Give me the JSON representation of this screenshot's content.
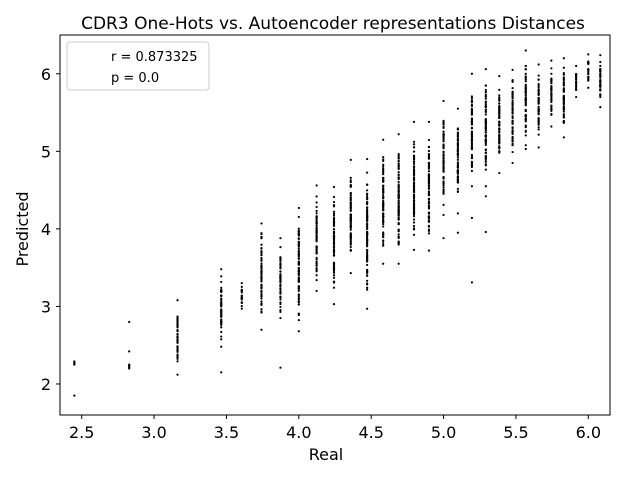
{
  "chart_data": {
    "type": "scatter",
    "title": "CDR3 One-Hots vs. Autoencoder representations Distances",
    "xlabel": "Real",
    "ylabel": "Predicted",
    "xlim": [
      2.35,
      6.15
    ],
    "ylim": [
      1.6,
      6.5
    ],
    "xticks": [
      2.5,
      3.0,
      3.5,
      4.0,
      4.5,
      5.0,
      5.5,
      6.0
    ],
    "xtick_labels": [
      "2.5",
      "3.0",
      "3.5",
      "4.0",
      "4.5",
      "5.0",
      "5.5",
      "6.0"
    ],
    "yticks": [
      2,
      3,
      4,
      5,
      6
    ],
    "ytick_labels": [
      "2",
      "3",
      "4",
      "5",
      "6"
    ],
    "grid": false,
    "legend_position": "upper-left",
    "legend": [
      "r = 0.873325",
      "p = 0.0"
    ],
    "marker_color": "#000000",
    "series": [
      {
        "columns": [
          {
            "x": 2.449,
            "lo": 2.25,
            "hi": 2.29,
            "extra": [
              1.85
            ]
          },
          {
            "x": 2.828,
            "lo": 2.2,
            "hi": 2.25,
            "extra": [
              2.42,
              2.8
            ]
          },
          {
            "x": 3.162,
            "lo": 2.12,
            "hi": 3.08,
            "extra": []
          },
          {
            "x": 3.464,
            "lo": 2.48,
            "hi": 3.48,
            "extra": [
              2.15
            ]
          },
          {
            "x": 3.606,
            "lo": 2.97,
            "hi": 3.3,
            "extra": []
          },
          {
            "x": 3.742,
            "lo": 2.7,
            "hi": 4.07,
            "extra": []
          },
          {
            "x": 3.873,
            "lo": 2.85,
            "hi": 3.88,
            "extra": [
              2.21
            ]
          },
          {
            "x": 4.0,
            "lo": 2.68,
            "hi": 4.27,
            "extra": []
          },
          {
            "x": 4.123,
            "lo": 3.2,
            "hi": 4.56,
            "extra": []
          },
          {
            "x": 4.243,
            "lo": 3.03,
            "hi": 4.54,
            "extra": []
          },
          {
            "x": 4.359,
            "lo": 3.43,
            "hi": 4.89,
            "extra": []
          },
          {
            "x": 4.472,
            "lo": 2.97,
            "hi": 4.9,
            "extra": []
          },
          {
            "x": 4.583,
            "lo": 3.55,
            "hi": 5.15,
            "extra": []
          },
          {
            "x": 4.69,
            "lo": 3.55,
            "hi": 5.22,
            "extra": []
          },
          {
            "x": 4.796,
            "lo": 3.73,
            "hi": 5.38,
            "extra": []
          },
          {
            "x": 4.899,
            "lo": 3.72,
            "hi": 5.38,
            "extra": []
          },
          {
            "x": 5.0,
            "lo": 4.18,
            "hi": 5.65,
            "extra": [
              3.88
            ]
          },
          {
            "x": 5.099,
            "lo": 4.2,
            "hi": 5.55,
            "extra": [
              3.95
            ]
          },
          {
            "x": 5.196,
            "lo": 4.55,
            "hi": 6.0,
            "extra": [
              3.31,
              4.14
            ]
          },
          {
            "x": 5.292,
            "lo": 4.55,
            "hi": 6.06,
            "extra": [
              3.96,
              4.42
            ]
          },
          {
            "x": 5.385,
            "lo": 4.72,
            "hi": 5.97,
            "extra": []
          },
          {
            "x": 5.477,
            "lo": 4.85,
            "hi": 6.05,
            "extra": []
          },
          {
            "x": 5.568,
            "lo": 5.03,
            "hi": 6.3,
            "extra": []
          },
          {
            "x": 5.657,
            "lo": 5.05,
            "hi": 6.12,
            "extra": []
          },
          {
            "x": 5.745,
            "lo": 5.32,
            "hi": 6.17,
            "extra": []
          },
          {
            "x": 5.831,
            "lo": 5.18,
            "hi": 6.2,
            "extra": []
          },
          {
            "x": 5.916,
            "lo": 5.7,
            "hi": 6.1,
            "extra": []
          },
          {
            "x": 6.0,
            "lo": 5.82,
            "hi": 6.25,
            "extra": []
          },
          {
            "x": 6.083,
            "lo": 5.57,
            "hi": 6.24,
            "extra": []
          }
        ]
      }
    ]
  }
}
